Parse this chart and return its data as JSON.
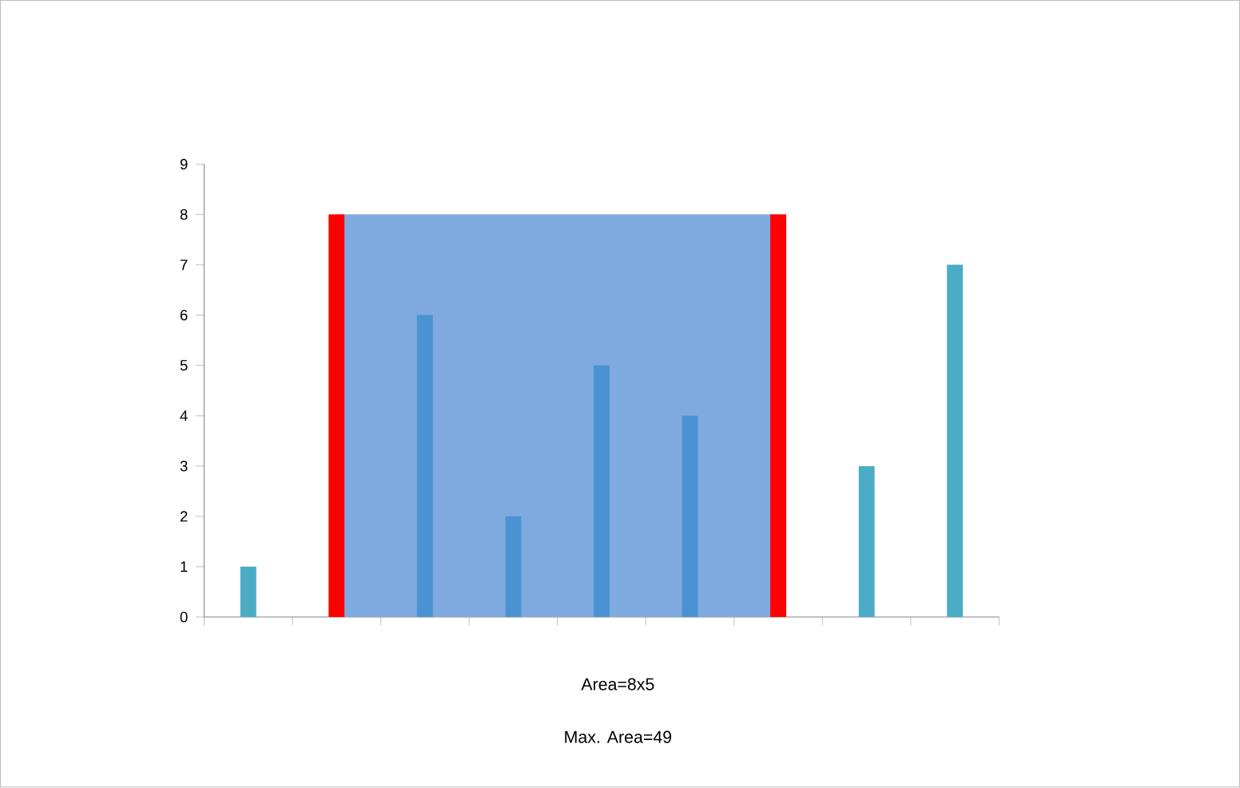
{
  "chart_data": {
    "type": "bar",
    "categories": [
      null,
      null,
      null,
      null,
      null,
      null,
      null,
      null,
      null
    ],
    "series": [
      {
        "type": "area",
        "color": "#7faadf",
        "values": [
          null,
          8,
          8,
          8,
          8,
          8,
          8,
          null,
          null
        ]
      },
      {
        "values": [
          1,
          8,
          6,
          2,
          5,
          4,
          8,
          3,
          7
        ],
        "colors": [
          "#4bacc6",
          "#ff0000",
          "#4a92d2",
          "#4a92d2",
          "#4a92d2",
          "#4a92d2",
          "#ff0000",
          "#4bacc6",
          "#4bacc6"
        ]
      }
    ],
    "ylim": [
      0,
      9
    ],
    "yticks": [
      0,
      1,
      2,
      3,
      4,
      5,
      6,
      7,
      8,
      9
    ],
    "grid": false,
    "annotations": [
      "Area=8x5",
      "Max. Area=49"
    ]
  }
}
